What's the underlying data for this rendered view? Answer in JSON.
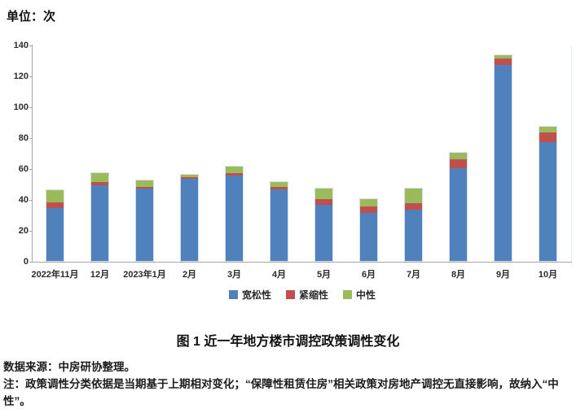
{
  "unit_label": "单位：次",
  "chart_data": {
    "type": "bar",
    "stacked": true,
    "title": "图 1 近一年地方楼市调控政策调性变化",
    "unit": "次",
    "categories": [
      "2022年11月",
      "12月",
      "2023年1月",
      "2月",
      "3月",
      "4月",
      "5月",
      "6月",
      "7月",
      "8月",
      "9月",
      "10月"
    ],
    "series": [
      {
        "name": "宽松性",
        "color": "#4F81BD",
        "values": [
          35,
          50,
          48,
          54,
          56,
          47,
          37,
          32,
          34,
          61,
          128,
          78
        ]
      },
      {
        "name": "紧缩性",
        "color": "#C0504D",
        "values": [
          4,
          2,
          1,
          1,
          2,
          2,
          4,
          4,
          4,
          6,
          4,
          6
        ]
      },
      {
        "name": "中性",
        "color": "#9BBA59",
        "values": [
          8,
          6,
          4,
          2,
          4,
          3,
          7,
          5,
          10,
          4,
          2,
          4
        ]
      }
    ],
    "ylim": [
      0,
      140
    ],
    "ytick_interval": 20,
    "grid": false,
    "legend_position": "bottom"
  },
  "caption": "图 1 近一年地方楼市调控政策调性变化",
  "footer": {
    "source": "数据来源：中房研协整理。",
    "note_lines": [
      "注：政策调性分类依据是当期基于上期相对变化；“保障性租赁住房”相关政策对房地产调控无直接影响，故纳入“中",
      "性”。"
    ]
  }
}
